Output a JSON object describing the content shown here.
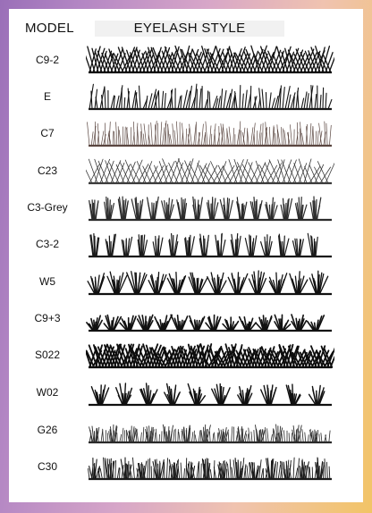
{
  "header": {
    "model_label": "MODEL",
    "style_label": "EYELASH STYLE"
  },
  "rows": [
    {
      "model": "C9-2",
      "style": "dense-crisscross",
      "color": "#111111"
    },
    {
      "model": "E",
      "style": "wispy-spikes",
      "color": "#151515"
    },
    {
      "model": "C7",
      "style": "fine-brown",
      "color": "#5a4640"
    },
    {
      "model": "C23",
      "style": "light-crisscross",
      "color": "#3a3a3a"
    },
    {
      "model": "C3-Grey",
      "style": "dense-clusters",
      "color": "#2b2b2b"
    },
    {
      "model": "C3-2",
      "style": "clusters",
      "color": "#1a1a1a"
    },
    {
      "model": "W5",
      "style": "v-fans",
      "color": "#111111"
    },
    {
      "model": "C9+3",
      "style": "tufts",
      "color": "#111111"
    },
    {
      "model": "S022",
      "style": "heavy-crisscross",
      "color": "#0d0d0d"
    },
    {
      "model": "W02",
      "style": "spaced-fans",
      "color": "#111111"
    },
    {
      "model": "G26",
      "style": "short-comb",
      "color": "#2a2a2a"
    },
    {
      "model": "C30",
      "style": "comb-clusters",
      "color": "#1a1a1a"
    }
  ]
}
